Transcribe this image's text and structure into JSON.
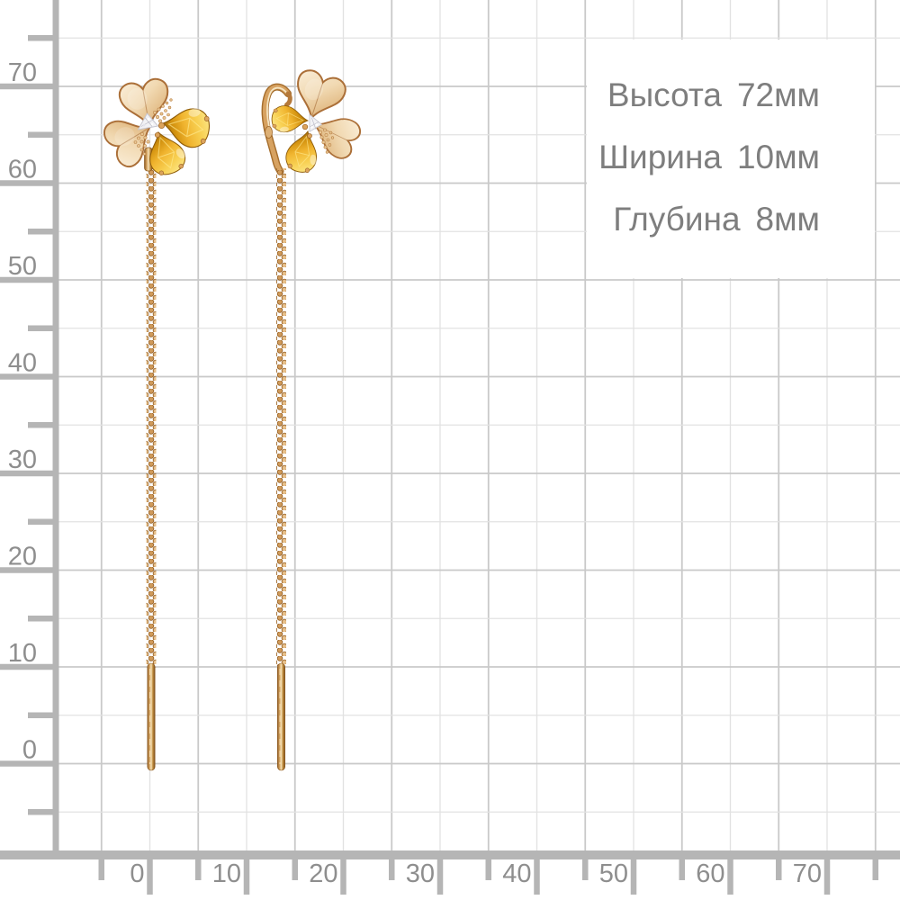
{
  "info_panel": {
    "rows": [
      {
        "label": "Высота",
        "value": "72мм"
      },
      {
        "label": "Ширина",
        "value": "10мм"
      },
      {
        "label": "Глубина",
        "value": "8мм"
      }
    ]
  },
  "x_axis": {
    "unit_labels": [
      "0",
      "10",
      "20",
      "30",
      "40",
      "50",
      "60",
      "70"
    ]
  },
  "y_axis": {
    "unit_labels": [
      "70",
      "60",
      "50",
      "40",
      "30",
      "20",
      "10",
      "0"
    ]
  },
  "product": {
    "left_item": "gold flower earring with citrine petals, diamond center and threader chain",
    "right_item": "gold flower earring side view with ear hook and threader chain"
  },
  "colors": {
    "grid_minor": "#e2e2e2",
    "grid_major": "#c9c9c9",
    "ruler": "#b5b5b5",
    "axis_text": "#8e8e8e",
    "info_text": "#7e7e7e",
    "gold_light": "#f7e9cf",
    "gold_mid": "#e2bb85",
    "gold_dark": "#ab6f38",
    "citrine": "#f0b42f",
    "diamond": "#f2f2f5"
  }
}
